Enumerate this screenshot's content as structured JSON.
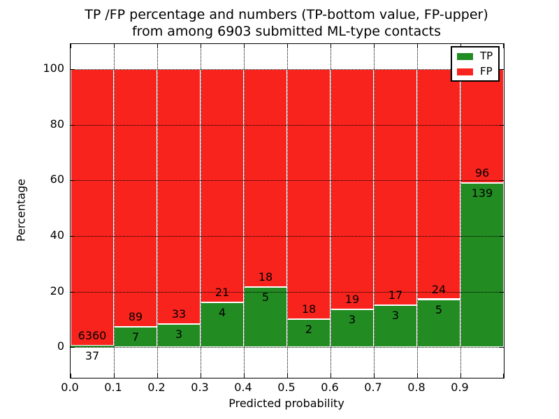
{
  "title": {
    "line1": "TP /FP percentage and numbers (TP-bottom value, FP-upper)",
    "line2": "from among 6903 submitted ML-type contacts"
  },
  "axes": {
    "xlabel": "Predicted probability",
    "ylabel": "Percentage",
    "x_tick_labels": [
      "0.0",
      "0.1",
      "0.2",
      "0.3",
      "0.4",
      "0.5",
      "0.6",
      "0.7",
      "0.8",
      "0.9"
    ],
    "y_tick_labels": [
      "0",
      "20",
      "40",
      "60",
      "80",
      "100"
    ]
  },
  "legend": {
    "position": "upper right",
    "items": [
      {
        "label": "TP",
        "color": "#228b22"
      },
      {
        "label": "FP",
        "color": "#f8231d"
      }
    ]
  },
  "colors": {
    "tp": "#228b22",
    "fp": "#f8231d",
    "edge": "#ffffff",
    "grid": "#000000",
    "text": "#000000",
    "background": "#ffffff"
  },
  "chart_data": {
    "type": "bar",
    "stacked": true,
    "title": "TP /FP percentage and numbers (TP-bottom value, FP-upper) from among 6903 submitted ML-type contacts",
    "xlabel": "Predicted probability",
    "ylabel": "Percentage",
    "total_contacts": 6903,
    "bin_edges": [
      0.0,
      0.1,
      0.2,
      0.3,
      0.4,
      0.5,
      0.6,
      0.7,
      0.8,
      0.9,
      1.0
    ],
    "series": [
      {
        "name": "TP",
        "color": "#228b22",
        "counts": [
          37,
          7,
          3,
          4,
          5,
          2,
          3,
          3,
          5,
          139
        ],
        "percentages": [
          0.58,
          7.29,
          8.33,
          16.0,
          21.74,
          10.0,
          13.64,
          15.0,
          17.24,
          59.15
        ]
      },
      {
        "name": "FP",
        "color": "#f8231d",
        "counts": [
          6360,
          89,
          33,
          21,
          18,
          18,
          19,
          17,
          24,
          96
        ],
        "percentages": [
          99.42,
          92.71,
          91.67,
          84.0,
          78.26,
          90.0,
          86.36,
          85.0,
          82.76,
          40.85
        ]
      }
    ],
    "xlim": [
      0.0,
      1.0
    ],
    "ylim": [
      -11,
      109
    ],
    "x_gridlines": [
      0.1,
      0.2,
      0.3,
      0.4,
      0.5,
      0.6,
      0.7,
      0.8,
      0.9
    ],
    "y_gridlines": [
      0,
      20,
      40,
      60,
      80,
      100
    ],
    "grid": true,
    "grid_style": "dotted",
    "legend_position": "upper right"
  }
}
